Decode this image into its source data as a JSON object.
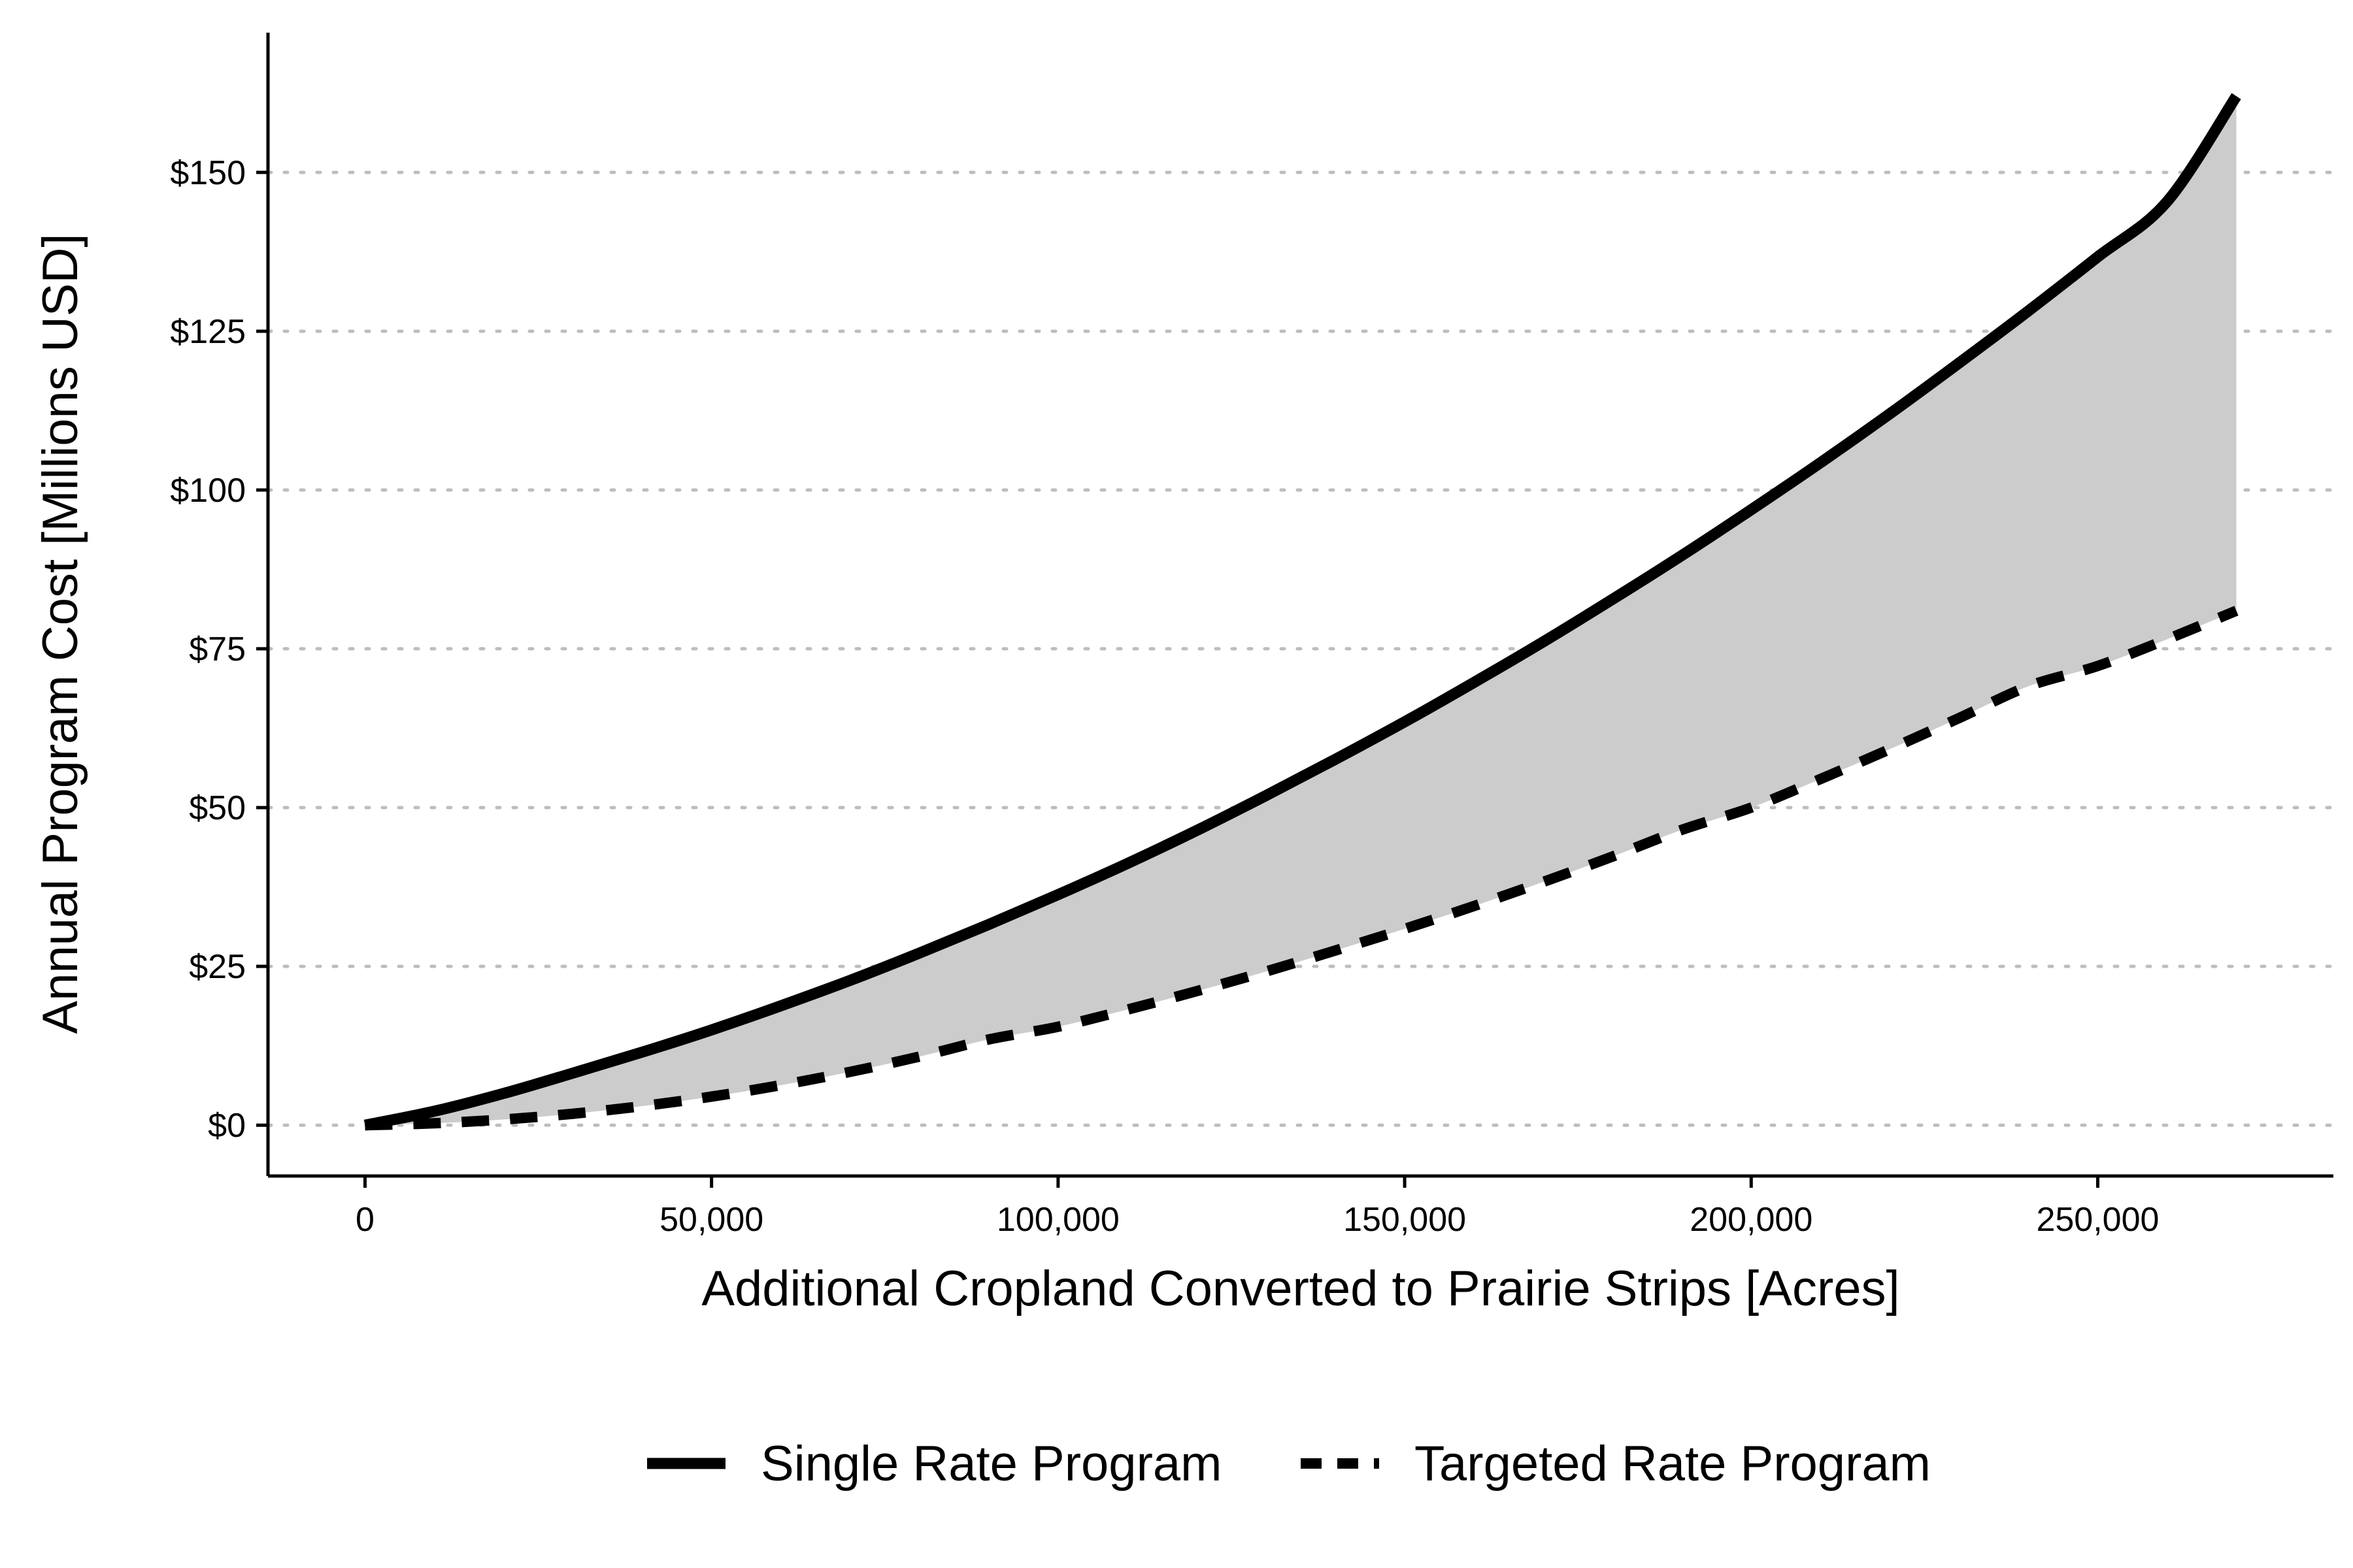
{
  "chart_data": {
    "type": "line",
    "xlabel": "Additional Cropland Converted to Prairie Strips [Acres]",
    "ylabel": "Annual Program Cost [Millions USD]",
    "xlim": [
      -14000,
      284000
    ],
    "ylim": [
      -8,
      172
    ],
    "x_ticks": [
      0,
      50000,
      100000,
      150000,
      200000,
      250000
    ],
    "x_tick_labels": [
      "0",
      "50,000",
      "100,000",
      "150,000",
      "200,000",
      "250,000"
    ],
    "y_ticks": [
      0,
      25,
      50,
      75,
      100,
      125,
      150
    ],
    "y_tick_labels": [
      "$0",
      "$25",
      "$50",
      "$75",
      "$100",
      "$125",
      "$150"
    ],
    "grid": "horizontal dotted",
    "legend_position": "bottom",
    "x": [
      0,
      10000,
      20000,
      30000,
      40000,
      50000,
      60000,
      70000,
      80000,
      90000,
      100000,
      110000,
      120000,
      130000,
      140000,
      150000,
      160000,
      170000,
      180000,
      190000,
      200000,
      210000,
      220000,
      230000,
      240000,
      250000,
      260000,
      270000
    ],
    "series": [
      {
        "name": "Single Rate Program",
        "style": "solid",
        "values": [
          0,
          2.2,
          5.0,
          8.2,
          11.5,
          15.0,
          18.8,
          22.8,
          27.1,
          31.6,
          36.3,
          41.2,
          46.4,
          51.9,
          57.6,
          63.5,
          69.7,
          76.1,
          82.8,
          89.7,
          96.9,
          104.3,
          112.0,
          120.0,
          128.2,
          136.7,
          145.4,
          162.0
        ]
      },
      {
        "name": "Targeted Rate Program",
        "style": "dashed",
        "values": [
          0,
          0.3,
          0.9,
          1.8,
          3.0,
          4.5,
          6.3,
          8.4,
          10.8,
          13.5,
          15.5,
          18.2,
          21.1,
          24.2,
          27.5,
          30.9,
          34.5,
          38.3,
          42.3,
          46.5,
          50.0,
          54.5,
          59.2,
          64.1,
          69.1,
          72.3,
          76.5,
          81.0
        ]
      }
    ],
    "shaded_region": "between Single Rate Program and Targeted Rate Program",
    "colors": {
      "lines": "#000000",
      "fill": "#cccccc",
      "grid": "#bdbdbd"
    }
  }
}
